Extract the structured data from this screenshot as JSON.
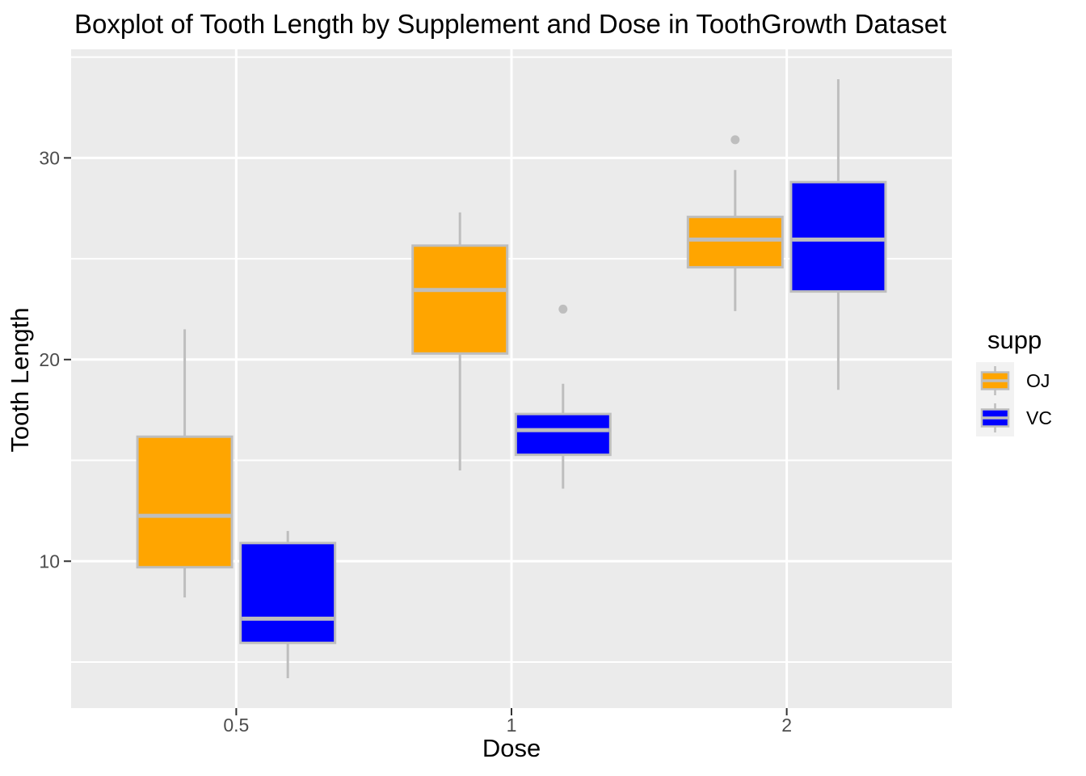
{
  "colors": {
    "panel_bg": "#EBEBEB",
    "grid": "#FFFFFF",
    "box_outline": "#BEBEBE",
    "whisker": "#BEBEBE",
    "median": "#BEBEBE",
    "outlier": "#BEBEBE",
    "tick_mark": "#333333",
    "tick_label": "#4D4D4D",
    "title_text": "#000000",
    "legend_key_bg": "#F2F2F2",
    "oj": "#FFA500",
    "vc": "#0000FF"
  },
  "chart_data": {
    "type": "boxplot",
    "title": "Boxplot of Tooth Length by Supplement and Dose in ToothGrowth Dataset",
    "xlabel": "Dose",
    "ylabel": "Tooth Length",
    "categories": [
      "0.5",
      "1",
      "2"
    ],
    "y_ticks": [
      10,
      20,
      30
    ],
    "y_tick_labels": [
      "10",
      "20",
      "30"
    ],
    "y_minor_ticks": [
      5,
      15,
      25,
      35
    ],
    "ylim": [
      2.715,
      35.385
    ],
    "grid": "on",
    "legend_position": "right",
    "legend": {
      "title": "supp",
      "entries": [
        {
          "label": "OJ",
          "color": "#FFA500"
        },
        {
          "label": "VC",
          "color": "#0000FF"
        }
      ]
    },
    "series": [
      {
        "name": "OJ",
        "color": "#FFA500",
        "boxes": [
          {
            "category": "0.5",
            "whisker_low": 8.2,
            "q1": 9.7,
            "median": 12.25,
            "q3": 16.175,
            "whisker_high": 21.5,
            "outliers": []
          },
          {
            "category": "1",
            "whisker_low": 14.5,
            "q1": 20.3,
            "median": 23.45,
            "q3": 25.65,
            "whisker_high": 27.3,
            "outliers": []
          },
          {
            "category": "2",
            "whisker_low": 22.4,
            "q1": 24.575,
            "median": 25.95,
            "q3": 27.075,
            "whisker_high": 29.4,
            "outliers": [
              30.9
            ]
          }
        ]
      },
      {
        "name": "VC",
        "color": "#0000FF",
        "boxes": [
          {
            "category": "0.5",
            "whisker_low": 4.2,
            "q1": 5.95,
            "median": 7.15,
            "q3": 10.9,
            "whisker_high": 11.5,
            "outliers": []
          },
          {
            "category": "1",
            "whisker_low": 13.6,
            "q1": 15.275,
            "median": 16.5,
            "q3": 17.3,
            "whisker_high": 18.8,
            "outliers": [
              22.5
            ]
          },
          {
            "category": "2",
            "whisker_low": 18.5,
            "q1": 23.375,
            "median": 25.95,
            "q3": 28.8,
            "whisker_high": 33.9,
            "outliers": []
          }
        ]
      }
    ]
  }
}
